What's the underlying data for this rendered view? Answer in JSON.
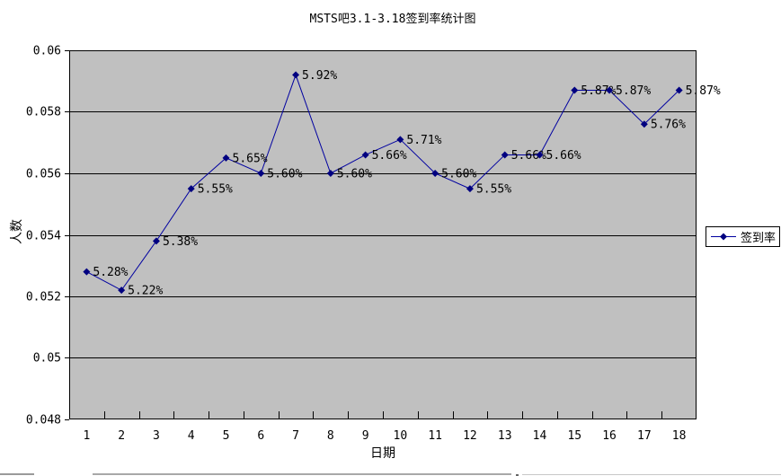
{
  "chart_data": {
    "type": "line",
    "title": "MSTS吧3.1-3.18签到率统计图",
    "xlabel": "日期",
    "ylabel": "人数",
    "legend": [
      "签到率"
    ],
    "legend_position": "right",
    "categories": [
      1,
      2,
      3,
      4,
      5,
      6,
      7,
      8,
      9,
      10,
      11,
      12,
      13,
      14,
      15,
      16,
      17,
      18
    ],
    "series": [
      {
        "name": "签到率",
        "values": [
          0.0528,
          0.0522,
          0.0538,
          0.0555,
          0.0565,
          0.056,
          0.0592,
          0.056,
          0.0566,
          0.0571,
          0.056,
          0.0555,
          0.0566,
          0.0566,
          0.0587,
          0.0587,
          0.0576,
          0.0587
        ],
        "labels": [
          "5.28%",
          "5.22%",
          "5.38%",
          "5.55%",
          "5.65%",
          "5.60%",
          "5.92%",
          "5.60%",
          "5.66%",
          "5.71%",
          "5.60%",
          "5.55%",
          "5.66%",
          "5.66%",
          "5.87%",
          "5.87%",
          "5.76%",
          "5.87%"
        ]
      }
    ],
    "ylim": [
      0.048,
      0.06
    ],
    "yticks": [
      "0.048",
      "0.05",
      "0.052",
      "0.054",
      "0.056",
      "0.058",
      "0.06"
    ],
    "grid": true,
    "colors": {
      "line": "#0000A0",
      "marker": "#000080",
      "plot_bg": "#C0C0C0",
      "gridline": "#000000",
      "text": "#000000",
      "chart_bg": "#FFFFFF"
    }
  }
}
